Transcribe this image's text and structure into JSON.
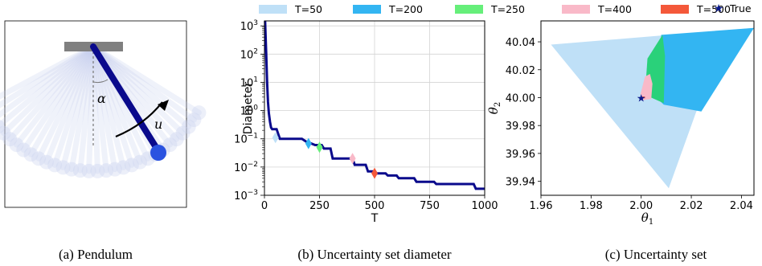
{
  "captions": {
    "a": "(a) Pendulum",
    "b": "(b) Uncertainty set diameter",
    "c": "(c) Uncertainty set"
  },
  "pendulum": {
    "alpha_label": "α",
    "u_label": "u",
    "colors": {
      "rod": "#0a0a8c",
      "bob": "#2a52e0",
      "pivot": "#808080"
    }
  },
  "legend": [
    {
      "label": "T=50",
      "color": "#bfe0f7",
      "marker": "patch"
    },
    {
      "label": "T=200",
      "color": "#33b5f2",
      "marker": "patch"
    },
    {
      "label": "T=250",
      "color": "#66ef7a",
      "marker": "patch"
    },
    {
      "label": "T=400",
      "color": "#f9b9c8",
      "marker": "patch"
    },
    {
      "label": "T=500",
      "color": "#f4583a",
      "marker": "patch"
    },
    {
      "label": "True",
      "color": "#0a1a8c",
      "marker": "star"
    }
  ],
  "chart_data": [
    {
      "type": "line",
      "xlabel": "T",
      "ylabel": "Diameter",
      "xlim": [
        0,
        1000
      ],
      "ylim": [
        0.001,
        1500
      ],
      "yscale": "log",
      "grid": true,
      "x_ticks": [
        0,
        250,
        500,
        750,
        1000
      ],
      "y_ticks": [
        {
          "value": 0.001,
          "base": "10",
          "exp": "−3"
        },
        {
          "value": 0.01,
          "base": "10",
          "exp": "−2"
        },
        {
          "value": 0.1,
          "base": "10",
          "exp": "−1"
        },
        {
          "value": 1,
          "base": "10",
          "exp": "0"
        },
        {
          "value": 10,
          "base": "10",
          "exp": "1"
        },
        {
          "value": 100,
          "base": "10",
          "exp": "2"
        },
        {
          "value": 1000,
          "base": "10",
          "exp": "3"
        }
      ],
      "line_color": "#0a0a8c",
      "series": [
        {
          "x": [
            3,
            8,
            12,
            16,
            20,
            25,
            30,
            35,
            55,
            70,
            170,
            200,
            210,
            230,
            260,
            270,
            300,
            310,
            400,
            410,
            460,
            470,
            500,
            510,
            550,
            560,
            600,
            610,
            680,
            690,
            770,
            780,
            950,
            960,
            1000
          ],
          "y": [
            1500,
            100,
            10,
            2,
            0.8,
            0.4,
            0.25,
            0.22,
            0.22,
            0.1,
            0.1,
            0.07,
            0.07,
            0.06,
            0.06,
            0.045,
            0.045,
            0.02,
            0.02,
            0.012,
            0.012,
            0.007,
            0.007,
            0.006,
            0.006,
            0.005,
            0.005,
            0.004,
            0.004,
            0.003,
            0.003,
            0.0025,
            0.0025,
            0.0017,
            0.0017
          ]
        }
      ],
      "markers": [
        {
          "x": 50,
          "y": 0.11,
          "color": "#bfe0f7"
        },
        {
          "x": 200,
          "y": 0.068,
          "color": "#33b5f2"
        },
        {
          "x": 250,
          "y": 0.05,
          "color": "#66ef7a"
        },
        {
          "x": 400,
          "y": 0.02,
          "color": "#f9b9c8"
        },
        {
          "x": 500,
          "y": 0.006,
          "color": "#f4583a"
        }
      ]
    },
    {
      "type": "area",
      "xlabel": "θ1",
      "ylabel": "θ2",
      "xlim": [
        1.96,
        2.045
      ],
      "ylim": [
        39.93,
        40.055
      ],
      "x_ticks": [
        "1.96",
        "1.98",
        "2.00",
        "2.02",
        "2.04"
      ],
      "y_ticks": [
        "39.94",
        "39.96",
        "39.98",
        "40.00",
        "40.02",
        "40.04"
      ],
      "regions": [
        {
          "name": "T=50",
          "color": "#bfe0f7",
          "points": [
            [
              1.964,
              40.038
            ],
            [
              2.045,
              40.05
            ],
            [
              2.022,
              39.99
            ],
            [
              2.011,
              39.935
            ]
          ]
        },
        {
          "name": "T=200",
          "color": "#33b5f2",
          "points": [
            [
              2.008,
              40.045
            ],
            [
              2.045,
              40.05
            ],
            [
              2.024,
              39.99
            ],
            [
              2.009,
              39.995
            ],
            [
              2.006,
              40.0
            ]
          ]
        },
        {
          "name": "T=250",
          "color": "#2ad17a",
          "points": [
            [
              2.0085,
              40.045
            ],
            [
              2.0025,
              40.028
            ],
            [
              2.0015,
              40.002
            ],
            [
              2.009,
              39.996
            ],
            [
              2.0095,
              40.03
            ]
          ]
        },
        {
          "name": "T=400",
          "color": "#f9b9c8",
          "points": [
            [
              2.0015,
              40.015
            ],
            [
              2.0035,
              40.017
            ],
            [
              2.0045,
              40.01
            ],
            [
              2.004,
              39.999
            ],
            [
              1.9995,
              39.998
            ],
            [
              1.9998,
              40.003
            ]
          ]
        },
        {
          "name": "T=500",
          "color": "#f4583a",
          "points": [
            [
              2.0002,
              40.0008
            ],
            [
              2.0014,
              40.0008
            ],
            [
              2.0016,
              39.9995
            ],
            [
              2.0004,
              39.9995
            ]
          ]
        }
      ],
      "true_point": {
        "x": 2.0,
        "y": 40.0
      }
    }
  ]
}
